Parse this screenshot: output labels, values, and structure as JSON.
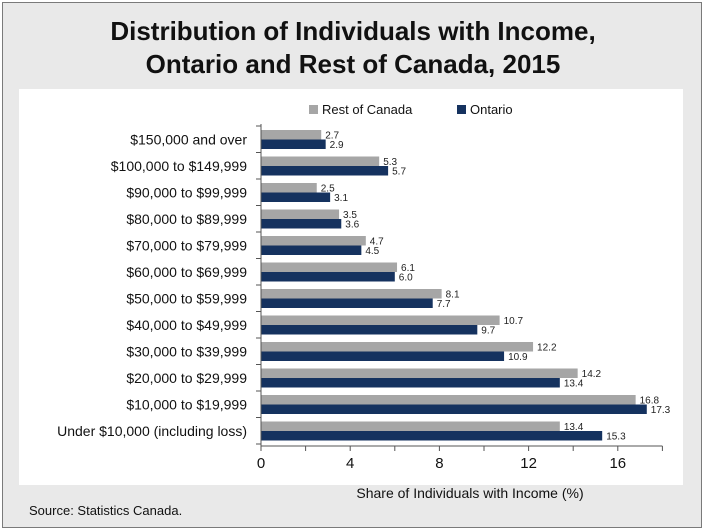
{
  "chart_data": {
    "type": "bar",
    "orientation": "horizontal",
    "title_lines": [
      "Distribution of Individuals with Income,",
      "Ontario and Rest of Canada, 2015"
    ],
    "xlabel": "Share of Individuals with Income (%)",
    "ylabel": "",
    "xlim": [
      0,
      18
    ],
    "xticks": [
      0,
      4,
      8,
      12,
      16
    ],
    "grid": false,
    "legend_position": "top",
    "categories": [
      "$150,000 and over",
      "$100,000 to $149,999",
      "$90,000 to $99,999",
      "$80,000 to $89,999",
      "$70,000 to $79,999",
      "$60,000 to $69,999",
      "$50,000 to $59,999",
      "$40,000 to $49,999",
      "$30,000 to $39,999",
      "$20,000 to $29,999",
      "$10,000 to $19,999",
      "Under $10,000 (including loss)"
    ],
    "series": [
      {
        "name": "Rest of Canada",
        "color": "#a6a6a6",
        "values": [
          2.7,
          5.3,
          2.5,
          3.5,
          4.7,
          6.1,
          8.1,
          10.7,
          12.2,
          14.2,
          16.8,
          13.4
        ],
        "value_labels": [
          "2.7",
          "5.3",
          "2.5",
          "3.5",
          "4.7",
          "6.1",
          "8.1",
          "10.7",
          "12.2",
          "14.2",
          "16.8",
          "13.4"
        ]
      },
      {
        "name": "Ontario",
        "color": "#15325f",
        "values": [
          2.9,
          5.7,
          3.1,
          3.6,
          4.5,
          6.0,
          7.7,
          9.7,
          10.9,
          13.4,
          17.3,
          15.3
        ],
        "value_labels": [
          "2.9",
          "5.7",
          "3.1",
          "3.6",
          "4.5",
          "6.0",
          "7.7",
          "9.7",
          "10.9",
          "13.4",
          "17.3",
          "15.3"
        ]
      }
    ]
  },
  "source": "Source: Statistics Canada."
}
